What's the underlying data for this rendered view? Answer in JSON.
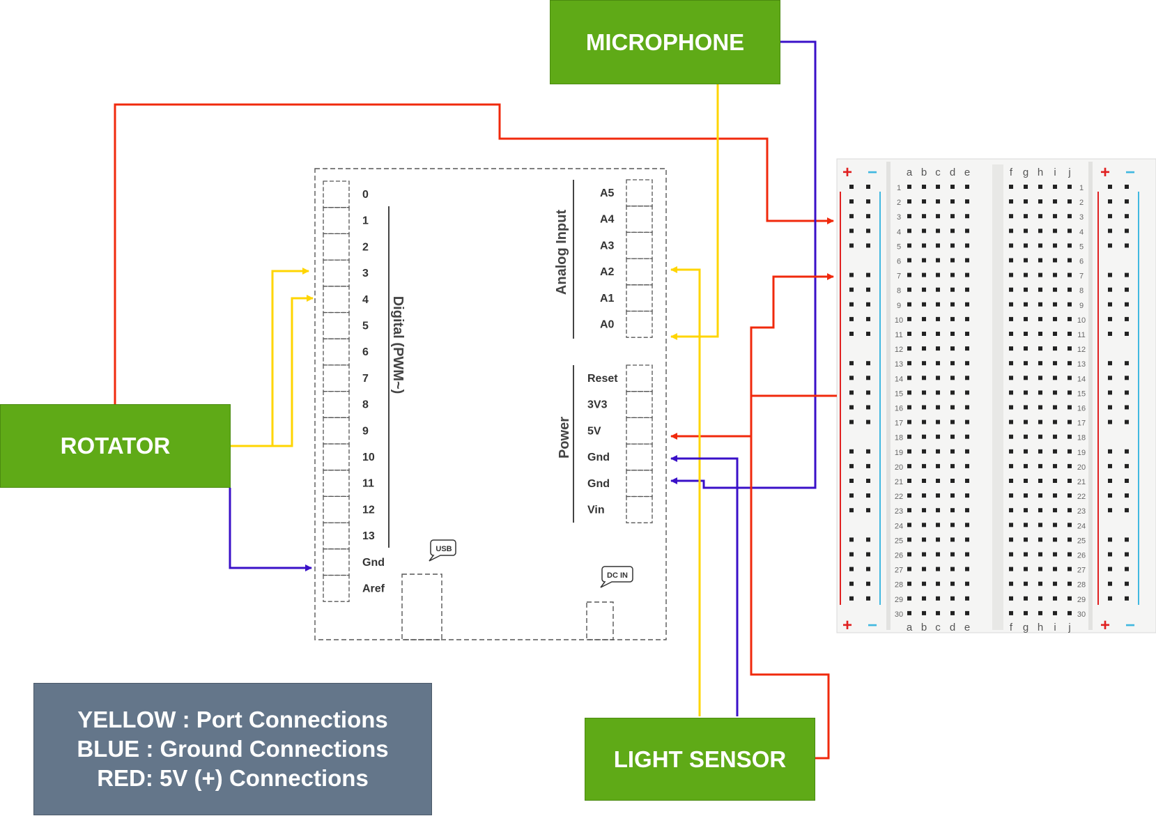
{
  "components": {
    "microphone": "MICROPHONE",
    "rotator": "ROTATOR",
    "light_sensor": "LIGHT SENSOR"
  },
  "legend": {
    "lines": [
      "YELLOW : Port Connections",
      "BLUE : Ground Connections",
      "RED: 5V (+) Connections"
    ]
  },
  "arduino": {
    "digital_label": "Digital (PWM~)",
    "digital_pins": [
      "0",
      "1",
      "2",
      "3",
      "4",
      "5",
      "6",
      "7",
      "8",
      "9",
      "10",
      "11",
      "12",
      "13",
      "Gnd",
      "Aref"
    ],
    "analog_label": "Analog Input",
    "analog_pins": [
      "A5",
      "A4",
      "A3",
      "A2",
      "A1",
      "A0"
    ],
    "power_label": "Power",
    "power_pins": [
      "Reset",
      "3V3",
      "5V",
      "Gnd",
      "Gnd",
      "Vin"
    ],
    "usb_label": "USB",
    "dc_label": "DC IN"
  },
  "breadboard": {
    "left_cols": [
      "a",
      "b",
      "c",
      "d",
      "e"
    ],
    "right_cols": [
      "f",
      "g",
      "h",
      "i",
      "j"
    ],
    "plus_symbol": "+",
    "minus_symbol": "−",
    "row_count": 30
  },
  "colors": {
    "yellow": "#ffd500",
    "blue": "#3a10c8",
    "red": "#f0290c",
    "box_green": "#5faa17",
    "legend_bg": "#64768a"
  }
}
